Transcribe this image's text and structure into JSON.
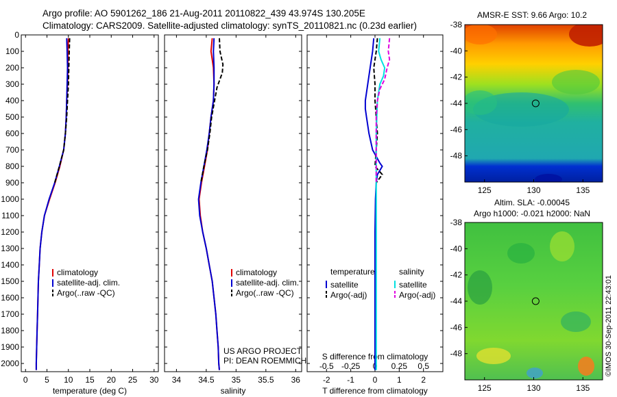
{
  "header": {
    "line1": "Argo profile: AO 5901262_186 21-Aug-2011 20110822_439 43.974S 130.205E",
    "line2": "Climatology: CARS2009. Satellite-adjusted climatology: synTS_20110821.nc (0.23d earlier)"
  },
  "chart_data": [
    {
      "type": "line",
      "xlabel": "temperature (deg C)",
      "xlim": [
        -1,
        31
      ],
      "xticks": [
        "0",
        "5",
        "10",
        "15",
        "20",
        "25",
        "30"
      ],
      "ylim": [
        2050,
        0
      ],
      "yticks": [
        "0",
        "100",
        "200",
        "300",
        "400",
        "500",
        "600",
        "700",
        "800",
        "900",
        "1000",
        "1100",
        "1200",
        "1300",
        "1400",
        "1500",
        "1600",
        "1700",
        "1800",
        "1900",
        "2000"
      ],
      "legend": [
        "climatology",
        "satellite-adj. clim.",
        "Argo(..raw -QC)"
      ],
      "series": [
        {
          "name": "climatology",
          "color": "#e00000",
          "dash": "",
          "points": [
            [
              10.0,
              20
            ],
            [
              9.9,
              100
            ],
            [
              9.9,
              200
            ],
            [
              9.8,
              300
            ],
            [
              9.6,
              400
            ],
            [
              9.5,
              500
            ],
            [
              9.3,
              600
            ],
            [
              8.9,
              700
            ],
            [
              8.0,
              800
            ],
            [
              6.9,
              900
            ],
            [
              5.6,
              1000
            ],
            [
              4.4,
              1100
            ],
            [
              3.8,
              1200
            ],
            [
              3.4,
              1300
            ],
            [
              3.2,
              1400
            ],
            [
              3.0,
              1500
            ],
            [
              2.9,
              1600
            ],
            [
              2.8,
              1700
            ],
            [
              2.7,
              1800
            ],
            [
              2.6,
              1900
            ],
            [
              2.5,
              2000
            ],
            [
              2.5,
              2040
            ]
          ]
        },
        {
          "name": "satellite-adj. clim.",
          "color": "#0000d0",
          "dash": "",
          "points": [
            [
              9.6,
              20
            ],
            [
              9.7,
              100
            ],
            [
              9.8,
              200
            ],
            [
              9.7,
              300
            ],
            [
              9.6,
              400
            ],
            [
              9.5,
              500
            ],
            [
              9.3,
              600
            ],
            [
              8.9,
              700
            ],
            [
              7.9,
              800
            ],
            [
              6.8,
              900
            ],
            [
              5.5,
              1000
            ],
            [
              4.4,
              1100
            ],
            [
              3.8,
              1200
            ],
            [
              3.4,
              1300
            ],
            [
              3.2,
              1400
            ],
            [
              3.0,
              1500
            ],
            [
              2.9,
              1600
            ],
            [
              2.8,
              1700
            ],
            [
              2.7,
              1800
            ],
            [
              2.6,
              1900
            ],
            [
              2.5,
              2000
            ],
            [
              2.5,
              2040
            ]
          ]
        },
        {
          "name": "Argo(..raw -QC)",
          "color": "#000000",
          "dash": "6,3",
          "points": [
            [
              10.3,
              20
            ],
            [
              10.2,
              100
            ],
            [
              10.1,
              200
            ],
            [
              10.0,
              300
            ],
            [
              9.8,
              400
            ],
            [
              9.6,
              500
            ],
            [
              9.3,
              600
            ],
            [
              8.9,
              700
            ],
            [
              7.9,
              800
            ],
            [
              6.8,
              900
            ]
          ]
        }
      ]
    },
    {
      "type": "line",
      "xlabel": "salinity",
      "xlim": [
        33.8,
        36.1
      ],
      "xticks": [
        "34",
        "34.5",
        "35",
        "35.5",
        "36"
      ],
      "ylim": [
        2050,
        0
      ],
      "legend": [
        "climatology",
        "satellite-adj. clim.",
        "Argo(..raw -QC)"
      ],
      "annotation": [
        "US ARGO PROJECT",
        "PI: DEAN ROEMMICH"
      ],
      "series": [
        {
          "name": "climatology",
          "color": "#e00000",
          "dash": "",
          "points": [
            [
              34.6,
              20
            ],
            [
              34.58,
              100
            ],
            [
              34.6,
              150
            ],
            [
              34.62,
              200
            ],
            [
              34.63,
              300
            ],
            [
              34.62,
              400
            ],
            [
              34.58,
              500
            ],
            [
              34.55,
              600
            ],
            [
              34.52,
              700
            ],
            [
              34.47,
              800
            ],
            [
              34.42,
              900
            ],
            [
              34.38,
              1000
            ],
            [
              34.4,
              1100
            ],
            [
              34.44,
              1200
            ],
            [
              34.5,
              1300
            ],
            [
              34.55,
              1400
            ],
            [
              34.6,
              1500
            ],
            [
              34.63,
              1600
            ],
            [
              34.66,
              1700
            ],
            [
              34.68,
              1800
            ],
            [
              34.7,
              1900
            ],
            [
              34.71,
              2000
            ],
            [
              34.72,
              2040
            ]
          ]
        },
        {
          "name": "satellite-adj. clim.",
          "color": "#0000d0",
          "dash": "",
          "points": [
            [
              34.63,
              20
            ],
            [
              34.62,
              100
            ],
            [
              34.63,
              200
            ],
            [
              34.63,
              300
            ],
            [
              34.62,
              400
            ],
            [
              34.58,
              500
            ],
            [
              34.55,
              600
            ],
            [
              34.51,
              700
            ],
            [
              34.46,
              800
            ],
            [
              34.41,
              900
            ],
            [
              34.37,
              1000
            ],
            [
              34.39,
              1100
            ],
            [
              34.44,
              1200
            ],
            [
              34.5,
              1300
            ],
            [
              34.55,
              1400
            ],
            [
              34.6,
              1500
            ],
            [
              34.63,
              1600
            ],
            [
              34.66,
              1700
            ],
            [
              34.68,
              1800
            ],
            [
              34.7,
              1900
            ],
            [
              34.71,
              2000
            ],
            [
              34.72,
              2040
            ]
          ]
        },
        {
          "name": "Argo(..raw -QC)",
          "color": "#000000",
          "dash": "6,3",
          "points": [
            [
              34.72,
              20
            ],
            [
              34.73,
              100
            ],
            [
              34.78,
              180
            ],
            [
              34.77,
              230
            ],
            [
              34.72,
              280
            ],
            [
              34.68,
              320
            ],
            [
              34.64,
              400
            ],
            [
              34.59,
              500
            ],
            [
              34.56,
              600
            ],
            [
              34.52,
              700
            ],
            [
              34.46,
              800
            ],
            [
              34.41,
              900
            ]
          ]
        }
      ]
    },
    {
      "type": "line",
      "xlabel": "T difference from climatology",
      "xlabel_top": "S difference from climatology",
      "xlim": [
        -2.8,
        2.8
      ],
      "xticks": [
        "-2",
        "-1",
        "0",
        "1",
        "2"
      ],
      "xticks_top": [
        "-0.5",
        "-0.25",
        "0",
        "0.25",
        "0.5"
      ],
      "ylim": [
        2050,
        0
      ],
      "legend_temperature": {
        "header": "temperature",
        "items": [
          "satellite",
          "Argo(-adj)"
        ]
      },
      "legend_salinity": {
        "header": "salinity",
        "items": [
          "satellite",
          "Argo(-adj)"
        ]
      },
      "series": [
        {
          "name": "temperature satellite",
          "color": "#0000d0",
          "dash": "",
          "points": [
            [
              -0.05,
              20
            ],
            [
              -0.1,
              100
            ],
            [
              -0.2,
              200
            ],
            [
              -0.3,
              300
            ],
            [
              -0.4,
              400
            ],
            [
              -0.4,
              450
            ],
            [
              -0.35,
              500
            ],
            [
              -0.25,
              600
            ],
            [
              -0.1,
              700
            ],
            [
              0.2,
              780
            ],
            [
              0.3,
              800
            ],
            [
              0.1,
              850
            ],
            [
              0.05,
              900
            ],
            [
              0.02,
              1000
            ],
            [
              0,
              1200
            ],
            [
              0,
              1500
            ],
            [
              0,
              2000
            ],
            [
              0,
              2040
            ]
          ]
        },
        {
          "name": "temperature Argo(-adj)",
          "color": "#000000",
          "dash": "6,3",
          "points": [
            [
              0.1,
              20
            ],
            [
              0.05,
              100
            ],
            [
              -0.05,
              200
            ],
            [
              0.0,
              300
            ],
            [
              0.0,
              400
            ],
            [
              0.05,
              500
            ],
            [
              0.1,
              600
            ],
            [
              0.05,
              700
            ],
            [
              0.0,
              800
            ],
            [
              0.3,
              850
            ],
            [
              0.05,
              900
            ]
          ]
        },
        {
          "name": "salinity satellite",
          "color": "#00e0e0",
          "dash": "",
          "points": [
            [
              0.2,
              20
            ],
            [
              0.15,
              100
            ],
            [
              0.25,
              150
            ],
            [
              0.4,
              200
            ],
            [
              0.35,
              250
            ],
            [
              0.2,
              300
            ],
            [
              0.1,
              400
            ],
            [
              0.05,
              600
            ],
            [
              0.05,
              800
            ],
            [
              0.05,
              1000
            ],
            [
              0.05,
              1200
            ],
            [
              0.05,
              1500
            ],
            [
              0.05,
              2000
            ],
            [
              0.05,
              2040
            ]
          ]
        },
        {
          "name": "salinity Argo(-adj)",
          "color": "#e000e0",
          "dash": "6,3",
          "points": [
            [
              0.6,
              20
            ],
            [
              0.55,
              100
            ],
            [
              0.6,
              150
            ],
            [
              0.5,
              200
            ],
            [
              0.4,
              270
            ],
            [
              0.2,
              330
            ],
            [
              0.1,
              400
            ],
            [
              0.05,
              500
            ],
            [
              0.05,
              700
            ],
            [
              0.05,
              900
            ]
          ]
        }
      ]
    },
    {
      "type": "heatmap",
      "title": "AMSR-E SST: 9.66 Argo: 10.2",
      "xlim": [
        123,
        137
      ],
      "ylim": [
        -50,
        -38
      ],
      "xticks": [
        "125",
        "130",
        "135"
      ],
      "yticks": [
        "-38",
        "-40",
        "-42",
        "-44",
        "-46",
        "-48"
      ],
      "marker": {
        "x": 130.2,
        "y": -44.0
      }
    },
    {
      "type": "heatmap",
      "title_line1": "Altim. SLA: -0.00045",
      "title_line2": "Argo h1000: -0.021 h2000: NaN",
      "xlim": [
        123,
        137
      ],
      "ylim": [
        -50,
        -38
      ],
      "xticks": [
        "125",
        "130",
        "135"
      ],
      "yticks": [
        "-38",
        "-40",
        "-42",
        "-44",
        "-46",
        "-48"
      ],
      "marker": {
        "x": 130.2,
        "y": -44.0
      }
    }
  ],
  "credit": "©IMOS 30-Sep-2011 22:43:01"
}
